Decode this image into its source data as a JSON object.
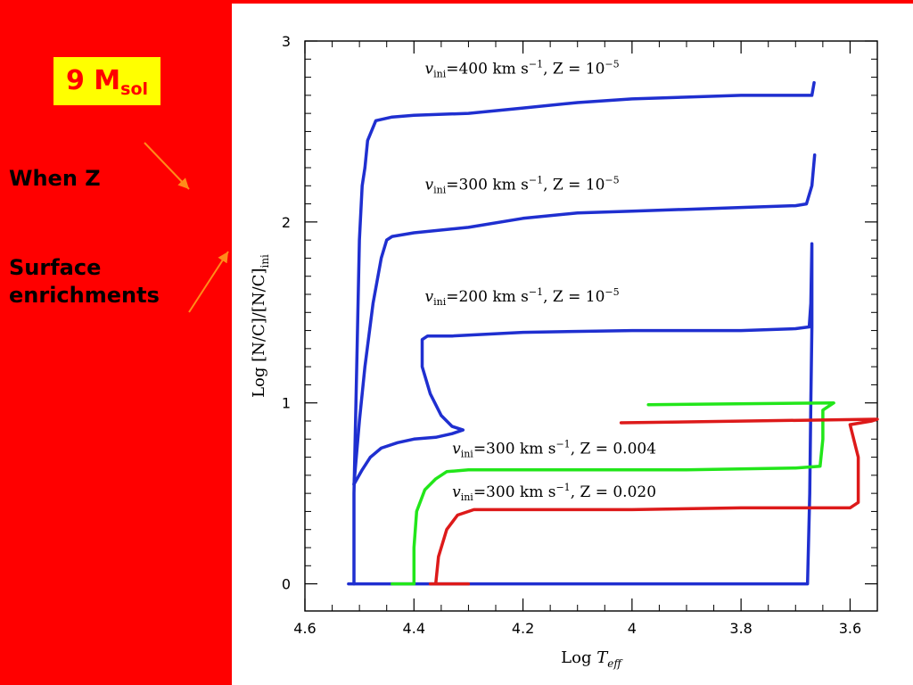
{
  "slide": {
    "mass_label": "9 M",
    "mass_subscript": "sol",
    "when_label": "When Z",
    "surface_label_line1": "Surface",
    "surface_label_line2": "enrichments",
    "arrow_color": "#ff8c1a"
  },
  "colors": {
    "background": "#ff0000",
    "label_box": "#ffff00",
    "mass_text": "#ff0000"
  },
  "chart_data": {
    "type": "line",
    "xlabel": "Log T",
    "xlabel_subscript": "eff",
    "ylabel": "Log [N/C]/[N/C]",
    "ylabel_subscript": "ini",
    "xlim": [
      4.6,
      3.55
    ],
    "ylim": [
      -0.15,
      3.0
    ],
    "x_inverted": true,
    "x_ticks": [
      "4.6",
      "4.4",
      "4.2",
      "4",
      "3.8",
      "3.6"
    ],
    "x_tick_values": [
      4.6,
      4.4,
      4.2,
      4.0,
      3.8,
      3.6
    ],
    "y_ticks": [
      "0",
      "1",
      "2",
      "3"
    ],
    "y_tick_values": [
      0,
      1,
      2,
      3
    ],
    "grid": false,
    "series": [
      {
        "name": "v_ini=400 km s^-1, Z = 10^-5",
        "label_pre": "=400 km s",
        "label_mid": ", Z = 10",
        "label_exp": "-5",
        "color": "#1f2fd0",
        "points": [
          [
            4.51,
            0.0
          ],
          [
            4.51,
            0.5
          ],
          [
            4.505,
            1.2
          ],
          [
            4.5,
            1.9
          ],
          [
            4.495,
            2.2
          ],
          [
            4.49,
            2.3
          ],
          [
            4.485,
            2.45
          ],
          [
            4.47,
            2.56
          ],
          [
            4.44,
            2.58
          ],
          [
            4.4,
            2.59
          ],
          [
            4.3,
            2.6
          ],
          [
            4.2,
            2.63
          ],
          [
            4.1,
            2.66
          ],
          [
            4.0,
            2.68
          ],
          [
            3.9,
            2.69
          ],
          [
            3.8,
            2.7
          ],
          [
            3.72,
            2.7
          ],
          [
            3.67,
            2.7
          ],
          [
            3.666,
            2.77
          ]
        ]
      },
      {
        "name": "v_ini=300 km s^-1, Z = 10^-5",
        "label_pre": "=300 km s",
        "label_mid": ", Z = 10",
        "label_exp": "-5",
        "color": "#1f2fd0",
        "points": [
          [
            4.51,
            0.55
          ],
          [
            4.5,
            0.9
          ],
          [
            4.49,
            1.2
          ],
          [
            4.475,
            1.55
          ],
          [
            4.46,
            1.8
          ],
          [
            4.45,
            1.9
          ],
          [
            4.44,
            1.92
          ],
          [
            4.4,
            1.94
          ],
          [
            4.3,
            1.97
          ],
          [
            4.2,
            2.02
          ],
          [
            4.1,
            2.05
          ],
          [
            4.0,
            2.06
          ],
          [
            3.9,
            2.07
          ],
          [
            3.8,
            2.08
          ],
          [
            3.7,
            2.09
          ],
          [
            3.68,
            2.1
          ],
          [
            3.67,
            2.2
          ],
          [
            3.665,
            2.37
          ]
        ]
      },
      {
        "name": "v_ini=200 km s^-1, Z = 10^-5",
        "label_pre": "=200 km s",
        "label_mid": ", Z = 10",
        "label_exp": "-5",
        "color": "#1f2fd0",
        "points": [
          [
            4.51,
            0.55
          ],
          [
            4.495,
            0.63
          ],
          [
            4.48,
            0.7
          ],
          [
            4.46,
            0.75
          ],
          [
            4.43,
            0.78
          ],
          [
            4.4,
            0.8
          ],
          [
            4.36,
            0.81
          ],
          [
            4.33,
            0.83
          ],
          [
            4.31,
            0.85
          ],
          [
            4.33,
            0.87
          ],
          [
            4.35,
            0.93
          ],
          [
            4.37,
            1.05
          ],
          [
            4.385,
            1.2
          ],
          [
            4.385,
            1.35
          ],
          [
            4.375,
            1.37
          ],
          [
            4.33,
            1.37
          ],
          [
            4.2,
            1.39
          ],
          [
            4.0,
            1.4
          ],
          [
            3.8,
            1.4
          ],
          [
            3.7,
            1.41
          ],
          [
            3.675,
            1.42
          ],
          [
            3.672,
            1.55
          ],
          [
            3.67,
            1.88
          ],
          [
            3.67,
            1.42
          ],
          [
            3.672,
            1.0
          ],
          [
            3.674,
            0.5
          ],
          [
            3.678,
            0.0
          ]
        ]
      },
      {
        "name": "v_ini=300 km s^-1, Z = 0.004",
        "label_pre": "=300 km s",
        "label_mid": ", Z = 0.004",
        "label_exp": "",
        "color": "#22e61a",
        "points": [
          [
            4.44,
            0.0
          ],
          [
            4.4,
            0.0
          ],
          [
            4.4,
            0.2
          ],
          [
            4.395,
            0.4
          ],
          [
            4.38,
            0.52
          ],
          [
            4.36,
            0.58
          ],
          [
            4.34,
            0.62
          ],
          [
            4.3,
            0.63
          ],
          [
            4.1,
            0.63
          ],
          [
            3.9,
            0.63
          ],
          [
            3.7,
            0.64
          ],
          [
            3.655,
            0.65
          ],
          [
            3.65,
            0.8
          ],
          [
            3.65,
            0.96
          ],
          [
            3.63,
            1.0
          ],
          [
            3.97,
            0.99
          ]
        ]
      },
      {
        "name": "v_ini=300 km s^-1, Z = 0.020",
        "label_pre": "=300 km s",
        "label_mid": ", Z = 0.020",
        "label_exp": "",
        "color": "#dd1a1a",
        "points": [
          [
            4.37,
            0.0
          ],
          [
            4.3,
            0.0
          ],
          [
            4.36,
            0.0
          ],
          [
            4.355,
            0.15
          ],
          [
            4.34,
            0.3
          ],
          [
            4.32,
            0.38
          ],
          [
            4.29,
            0.41
          ],
          [
            4.2,
            0.41
          ],
          [
            4.0,
            0.41
          ],
          [
            3.8,
            0.42
          ],
          [
            3.6,
            0.42
          ],
          [
            3.585,
            0.45
          ],
          [
            3.585,
            0.7
          ],
          [
            3.6,
            0.88
          ],
          [
            3.56,
            0.9
          ],
          [
            3.55,
            0.91
          ],
          [
            4.02,
            0.89
          ]
        ]
      }
    ],
    "hr_baseline": {
      "color": "#1f2fd0",
      "points": [
        [
          4.52,
          0.0
        ],
        [
          3.68,
          0.0
        ]
      ]
    },
    "annotations": [
      {
        "series": 0,
        "at": [
          4.38,
          2.82
        ]
      },
      {
        "series": 1,
        "at": [
          4.38,
          2.18
        ]
      },
      {
        "series": 2,
        "at": [
          4.38,
          1.56
        ]
      },
      {
        "series": 3,
        "at": [
          4.33,
          0.72
        ]
      },
      {
        "series": 4,
        "at": [
          4.33,
          0.48
        ]
      }
    ]
  }
}
